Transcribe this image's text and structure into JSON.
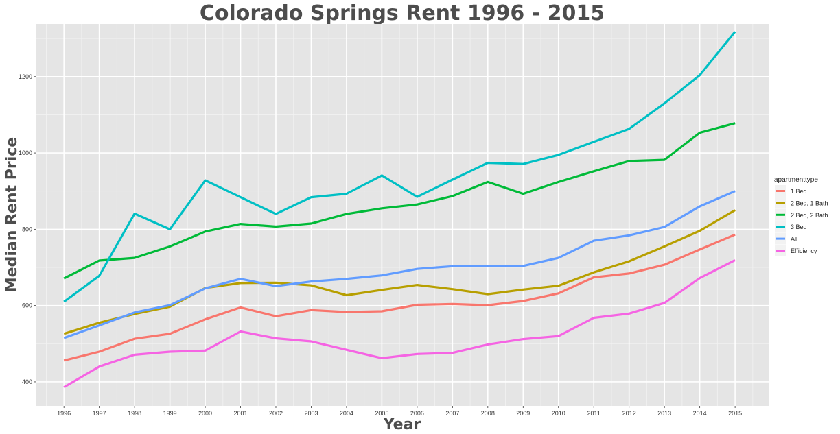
{
  "chart_data": {
    "type": "line",
    "title": "Colorado Springs Rent 1996 - 2015",
    "xlabel": "Year",
    "ylabel": "Median Rent Price",
    "x": [
      1996,
      1997,
      1998,
      1999,
      2000,
      2001,
      2002,
      2003,
      2004,
      2005,
      2006,
      2007,
      2008,
      2009,
      2010,
      2011,
      2012,
      2013,
      2014,
      2015
    ],
    "x_ticks": [
      "1996",
      "1997",
      "1998",
      "1999",
      "2000",
      "2001",
      "2002",
      "2003",
      "2004",
      "2005",
      "2006",
      "2007",
      "2008",
      "2009",
      "2010",
      "2011",
      "2012",
      "2013",
      "2014",
      "2015"
    ],
    "xlim": [
      1995.2,
      2015.95
    ],
    "ylim": [
      337,
      1338
    ],
    "y_ticks": [
      "400",
      "600",
      "800",
      "1000",
      "1200"
    ],
    "grid": true,
    "legend_title": "apartmenttype",
    "legend_position": "right",
    "series": [
      {
        "name": "1 Bed",
        "color": "#f8766d",
        "values": [
          456,
          479,
          513,
          526,
          564,
          595,
          572,
          588,
          583,
          585,
          602,
          604,
          601,
          612,
          632,
          674,
          684,
          707,
          747,
          786
        ]
      },
      {
        "name": "2 Bed, 1 Bath",
        "color": "#b79f00",
        "values": [
          526,
          555,
          578,
          597,
          646,
          659,
          660,
          653,
          627,
          641,
          654,
          643,
          630,
          642,
          652,
          687,
          716,
          755,
          796,
          850
        ]
      },
      {
        "name": "2 Bed, 2 Bath",
        "color": "#00ba38",
        "values": [
          671,
          718,
          725,
          755,
          794,
          814,
          807,
          815,
          840,
          855,
          865,
          887,
          924,
          893,
          924,
          952,
          979,
          982,
          1053,
          1078
        ]
      },
      {
        "name": "3 Bed",
        "color": "#00bfc4",
        "values": [
          610,
          678,
          841,
          800,
          928,
          884,
          840,
          884,
          893,
          941,
          885,
          930,
          974,
          971,
          995,
          1029,
          1063,
          1130,
          1204,
          1318
        ]
      },
      {
        "name": "All",
        "color": "#619cff",
        "values": [
          515,
          548,
          582,
          601,
          645,
          670,
          651,
          663,
          670,
          679,
          696,
          703,
          704,
          704,
          725,
          770,
          784,
          806,
          860,
          900
        ]
      },
      {
        "name": "Efficiency",
        "color": "#f564e3",
        "values": [
          386,
          440,
          471,
          479,
          482,
          532,
          514,
          506,
          484,
          462,
          473,
          476,
          498,
          512,
          520,
          568,
          579,
          607,
          672,
          719
        ]
      }
    ]
  }
}
